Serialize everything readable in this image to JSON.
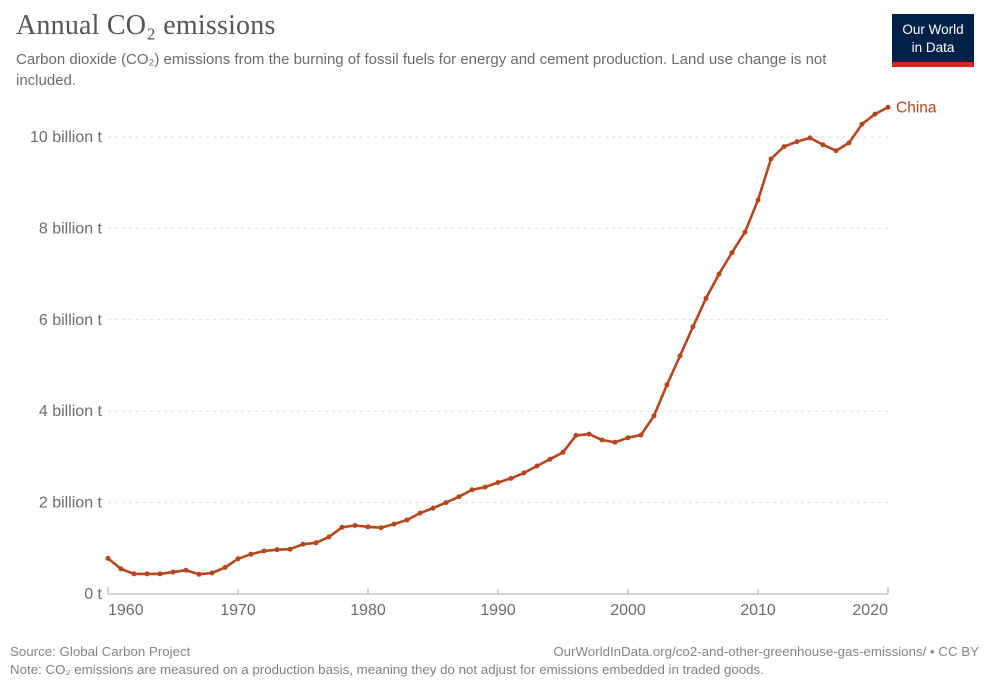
{
  "header": {
    "title": "Annual CO₂ emissions",
    "subtitle": "Carbon dioxide (CO₂) emissions from the burning of fossil fuels for energy and cement production. Land use change is not included."
  },
  "logo": {
    "line1": "Our World",
    "line2": "in Data",
    "background_color": "#002147",
    "accent_color": "#d8281e"
  },
  "chart_data": {
    "type": "line",
    "title": "Annual CO₂ emissions",
    "xlabel": "",
    "ylabel": "",
    "xlim": [
      1960,
      2020
    ],
    "ylim": [
      0,
      10
    ],
    "xticks": [
      1960,
      1970,
      1980,
      1990,
      2000,
      2010,
      2020
    ],
    "yticks": [
      0,
      2,
      4,
      6,
      8,
      10
    ],
    "ytick_labels": [
      "0 t",
      "2 billion t",
      "4 billion t",
      "6 billion t",
      "8 billion t",
      "10 billion t"
    ],
    "grid": "horizontal-dashed",
    "legend_position": "end-of-line-label",
    "series": [
      {
        "name": "China",
        "color": "#b5461f",
        "unit": "billion t",
        "x": [
          1960,
          1961,
          1962,
          1963,
          1964,
          1965,
          1966,
          1967,
          1968,
          1969,
          1970,
          1971,
          1972,
          1973,
          1974,
          1975,
          1976,
          1977,
          1978,
          1979,
          1980,
          1981,
          1982,
          1983,
          1984,
          1985,
          1986,
          1987,
          1988,
          1989,
          1990,
          1991,
          1992,
          1993,
          1994,
          1995,
          1996,
          1997,
          1998,
          1999,
          2000,
          2001,
          2002,
          2003,
          2004,
          2005,
          2006,
          2007,
          2008,
          2009,
          2010,
          2011,
          2012,
          2013,
          2014,
          2015,
          2016,
          2017,
          2018,
          2019,
          2020
        ],
        "values": [
          0.78,
          0.55,
          0.44,
          0.44,
          0.44,
          0.48,
          0.52,
          0.43,
          0.46,
          0.58,
          0.77,
          0.87,
          0.94,
          0.97,
          0.98,
          1.09,
          1.12,
          1.25,
          1.46,
          1.5,
          1.47,
          1.45,
          1.53,
          1.62,
          1.77,
          1.88,
          2.0,
          2.13,
          2.28,
          2.34,
          2.44,
          2.53,
          2.65,
          2.8,
          2.95,
          3.1,
          3.47,
          3.5,
          3.37,
          3.32,
          3.42,
          3.48,
          3.9,
          4.58,
          5.21,
          5.85,
          6.47,
          7.0,
          7.47,
          7.92,
          8.62,
          9.52,
          9.79,
          9.9,
          9.98,
          9.83,
          9.7,
          9.87,
          10.28,
          10.5,
          10.65
        ]
      }
    ]
  },
  "footer": {
    "source": "Source: Global Carbon Project",
    "link": "OurWorldInData.org/co2-and-other-greenhouse-gas-emissions/ • CC BY",
    "note": "Note: CO₂ emissions are measured on a production basis, meaning they do not adjust for emissions embedded in traded goods."
  },
  "style": {
    "grid_color": "#dedede",
    "axis_color": "#a9a9a9",
    "tick_label_color": "#6b6b6b"
  }
}
